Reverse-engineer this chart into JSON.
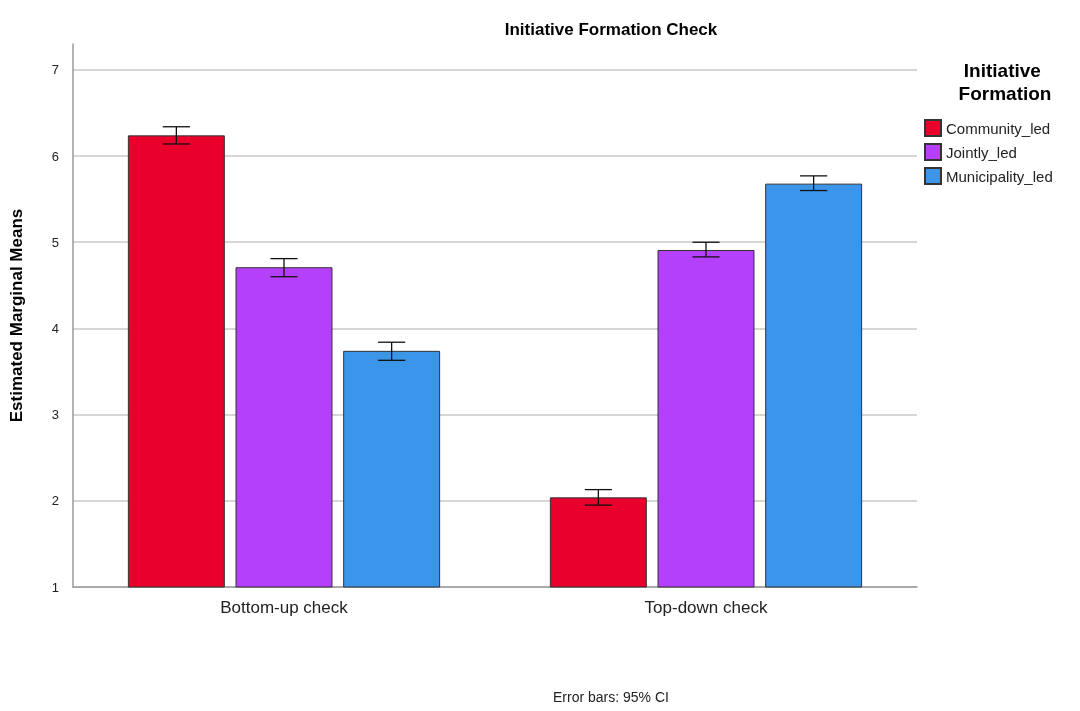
{
  "chart_data": {
    "type": "bar",
    "title": "Initiative Formation Check",
    "ylabel": "Estimated Marginal Means",
    "legend_title": "Initiative Formation",
    "annotations": [
      "Error bars: 95% CI"
    ],
    "categories": [
      "Bottom-up check",
      "Top-down check"
    ],
    "series": [
      {
        "name": "Community_led",
        "color": "#e9002b",
        "values": [
          6.24,
          2.04
        ],
        "errors": [
          [
            6.14,
            6.34
          ],
          [
            1.95,
            2.13
          ]
        ]
      },
      {
        "name": "Jointly_led",
        "color": "#b540fb",
        "values": [
          4.71,
          4.91
        ],
        "errors": [
          [
            4.6,
            4.81
          ],
          [
            4.83,
            5.0
          ]
        ]
      },
      {
        "name": "Municipality_led",
        "color": "#3b96ea",
        "values": [
          3.74,
          5.68
        ],
        "errors": [
          [
            3.63,
            3.84
          ],
          [
            5.6,
            5.77
          ]
        ]
      }
    ],
    "ylim": [
      1,
      7.3
    ],
    "yticks": [
      1,
      2,
      3,
      4,
      5,
      6,
      7
    ],
    "grid": "y",
    "legend": "top right"
  }
}
